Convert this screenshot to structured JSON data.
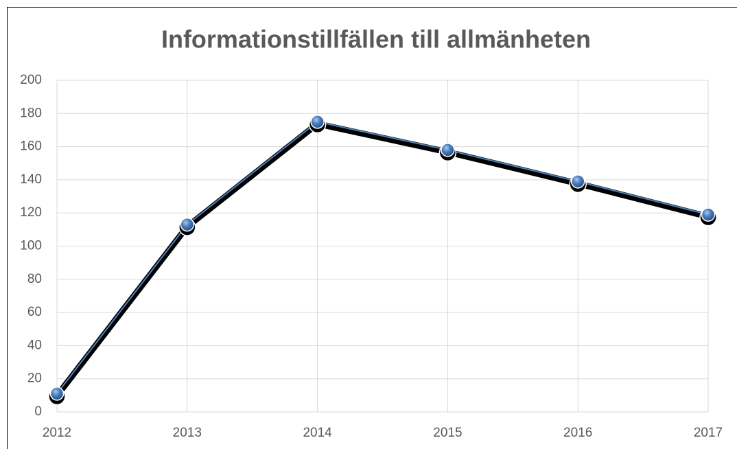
{
  "chart_data": {
    "type": "line",
    "title": "Informationstillfällen till allmänheten",
    "categories": [
      "2012",
      "2013",
      "2014",
      "2015",
      "2016",
      "2017"
    ],
    "series": [
      {
        "color": "#4f81bd",
        "values": [
          11,
          113,
          175,
          158,
          139,
          119
        ]
      }
    ],
    "ylim": [
      0,
      200
    ],
    "yticks": [
      0,
      20,
      40,
      60,
      80,
      100,
      120,
      140,
      160,
      180,
      200
    ],
    "grid": true
  }
}
